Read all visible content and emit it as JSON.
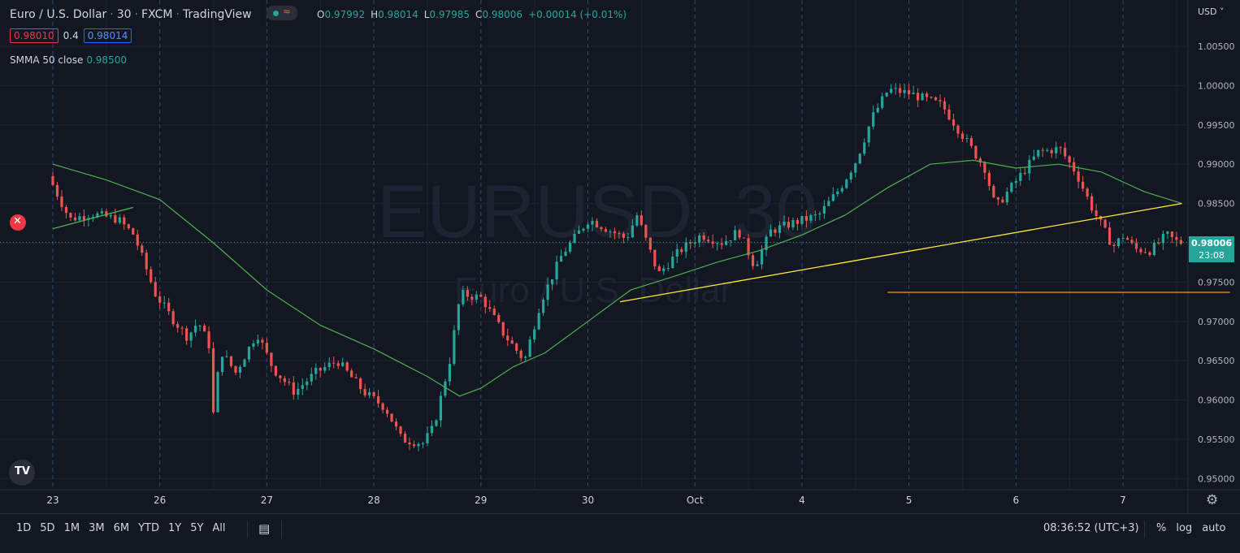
{
  "header": {
    "symbol": "Euro / U.S. Dollar",
    "interval": "30",
    "exchange": "FXCM",
    "platform": "TradingView",
    "ohlc": {
      "o_label": "O",
      "o": "0.97992",
      "h_label": "H",
      "h": "0.98014",
      "l_label": "L",
      "l": "0.97985",
      "c_label": "C",
      "c": "0.98006",
      "change": "+0.00014 (+0.01%)"
    },
    "bid": "0.98010",
    "spread": "0.4",
    "ask": "0.98014"
  },
  "indicator": {
    "name": "SMMA 50 close",
    "value": "0.98500"
  },
  "currency_selector": "USD",
  "watermark": {
    "symbol": "EURUSD, 30",
    "name": "Euro / U.S. Dollar"
  },
  "last_price": {
    "price": "0.98006",
    "countdown": "23:08"
  },
  "bottom_bar": {
    "ranges": [
      "1D",
      "5D",
      "1M",
      "3M",
      "6M",
      "YTD",
      "1Y",
      "5Y",
      "All"
    ],
    "time": "08:36:52 (UTC+3)",
    "options": [
      "%",
      "log",
      "auto"
    ]
  },
  "colors": {
    "up": "#26a69a",
    "down": "#ef5350",
    "smma": "#4caf50",
    "trendline": "#ffeb3b",
    "support": "#ff9800",
    "grid": "#1e2230",
    "session": "#2a4a7a"
  },
  "chart_data": {
    "type": "candlestick",
    "title": "Euro / U.S. Dollar · 30 · FXCM",
    "ylim": [
      0.9495,
      1.0085
    ],
    "y_ticks": [
      0.95,
      0.955,
      0.96,
      0.965,
      0.97,
      0.975,
      0.98,
      0.985,
      0.99,
      0.995,
      1.0,
      1.005
    ],
    "x_tick_labels": [
      "23",
      "26",
      "27",
      "28",
      "29",
      "30",
      "Oct",
      "4",
      "5",
      "6",
      "7"
    ],
    "price_path": [
      {
        "t": 0,
        "p": 0.9885
      },
      {
        "t": 0.2,
        "p": 0.983
      },
      {
        "t": 0.4,
        "p": 0.9837
      },
      {
        "t": 0.65,
        "p": 0.983
      },
      {
        "t": 0.8,
        "p": 0.981
      },
      {
        "t": 1.0,
        "p": 0.9735
      },
      {
        "t": 1.15,
        "p": 0.9705
      },
      {
        "t": 1.3,
        "p": 0.968
      },
      {
        "t": 1.4,
        "p": 0.97
      },
      {
        "t": 1.5,
        "p": 0.967
      },
      {
        "t": 1.55,
        "p": 0.9565
      },
      {
        "t": 1.6,
        "p": 0.9665
      },
      {
        "t": 1.75,
        "p": 0.9635
      },
      {
        "t": 1.95,
        "p": 0.9685
      },
      {
        "t": 2.1,
        "p": 0.964
      },
      {
        "t": 2.3,
        "p": 0.961
      },
      {
        "t": 2.5,
        "p": 0.9635
      },
      {
        "t": 2.7,
        "p": 0.965
      },
      {
        "t": 2.95,
        "p": 0.961
      },
      {
        "t": 3.15,
        "p": 0.959
      },
      {
        "t": 3.3,
        "p": 0.955
      },
      {
        "t": 3.5,
        "p": 0.9545
      },
      {
        "t": 3.6,
        "p": 0.9565
      },
      {
        "t": 3.75,
        "p": 0.965
      },
      {
        "t": 3.85,
        "p": 0.9735
      },
      {
        "t": 4.05,
        "p": 0.973
      },
      {
        "t": 4.25,
        "p": 0.9685
      },
      {
        "t": 4.45,
        "p": 0.965
      },
      {
        "t": 4.6,
        "p": 0.9725
      },
      {
        "t": 4.8,
        "p": 0.9785
      },
      {
        "t": 5.05,
        "p": 0.983
      },
      {
        "t": 5.4,
        "p": 0.9805
      },
      {
        "t": 5.5,
        "p": 0.9835
      },
      {
        "t": 5.7,
        "p": 0.976
      },
      {
        "t": 5.9,
        "p": 0.979
      },
      {
        "t": 6.1,
        "p": 0.981
      },
      {
        "t": 6.3,
        "p": 0.98
      },
      {
        "t": 6.45,
        "p": 0.9815
      },
      {
        "t": 6.6,
        "p": 0.977
      },
      {
        "t": 6.75,
        "p": 0.9815
      },
      {
        "t": 6.95,
        "p": 0.9825
      },
      {
        "t": 7.2,
        "p": 0.9835
      },
      {
        "t": 7.4,
        "p": 0.987
      },
      {
        "t": 7.55,
        "p": 0.9905
      },
      {
        "t": 7.7,
        "p": 0.996
      },
      {
        "t": 7.85,
        "p": 0.9995
      },
      {
        "t": 8.05,
        "p": 0.999
      },
      {
        "t": 8.35,
        "p": 0.9975
      },
      {
        "t": 8.55,
        "p": 0.9935
      },
      {
        "t": 8.75,
        "p": 0.9895
      },
      {
        "t": 8.85,
        "p": 0.9845
      },
      {
        "t": 9.05,
        "p": 0.988
      },
      {
        "t": 9.25,
        "p": 0.9915
      },
      {
        "t": 9.45,
        "p": 0.992
      },
      {
        "t": 9.6,
        "p": 0.989
      },
      {
        "t": 9.75,
        "p": 0.9845
      },
      {
        "t": 9.85,
        "p": 0.982
      },
      {
        "t": 9.95,
        "p": 0.9795
      },
      {
        "t": 10.05,
        "p": 0.981
      },
      {
        "t": 10.15,
        "p": 0.9792
      },
      {
        "t": 10.3,
        "p": 0.979
      },
      {
        "t": 10.45,
        "p": 0.981
      },
      {
        "t": 10.55,
        "p": 0.98006
      }
    ],
    "smma_path": [
      {
        "t": 0,
        "p": 0.99
      },
      {
        "t": 0.5,
        "p": 0.988
      },
      {
        "t": 1.0,
        "p": 0.9855
      },
      {
        "t": 1.5,
        "p": 0.98
      },
      {
        "t": 2.0,
        "p": 0.974
      },
      {
        "t": 2.5,
        "p": 0.9695
      },
      {
        "t": 3.0,
        "p": 0.9665
      },
      {
        "t": 3.5,
        "p": 0.963
      },
      {
        "t": 3.8,
        "p": 0.9605
      },
      {
        "t": 4.0,
        "p": 0.9615
      },
      {
        "t": 4.3,
        "p": 0.9642
      },
      {
        "t": 4.6,
        "p": 0.966
      },
      {
        "t": 5.0,
        "p": 0.97
      },
      {
        "t": 5.4,
        "p": 0.974
      },
      {
        "t": 5.8,
        "p": 0.9757
      },
      {
        "t": 6.2,
        "p": 0.9775
      },
      {
        "t": 6.6,
        "p": 0.979
      },
      {
        "t": 7.0,
        "p": 0.981
      },
      {
        "t": 7.4,
        "p": 0.9835
      },
      {
        "t": 7.8,
        "p": 0.987
      },
      {
        "t": 8.2,
        "p": 0.99
      },
      {
        "t": 8.6,
        "p": 0.9905
      },
      {
        "t": 9.0,
        "p": 0.9895
      },
      {
        "t": 9.4,
        "p": 0.99
      },
      {
        "t": 9.8,
        "p": 0.989
      },
      {
        "t": 10.2,
        "p": 0.9865
      },
      {
        "t": 10.55,
        "p": 0.985
      }
    ],
    "trendlines": [
      {
        "name": "rising-trendline",
        "from": {
          "t": 5.3,
          "p": 0.9725
        },
        "to": {
          "t": 10.55,
          "p": 0.985
        }
      },
      {
        "name": "early-trendline",
        "from": {
          "t": 0,
          "p": 0.9818
        },
        "to": {
          "t": 0.75,
          "p": 0.9845
        }
      },
      {
        "name": "support-line",
        "from": {
          "t": 7.8,
          "p": 0.9737
        },
        "to": {
          "t": 11.0,
          "p": 0.9737
        }
      }
    ],
    "last_price": 0.98006,
    "grid": true
  }
}
